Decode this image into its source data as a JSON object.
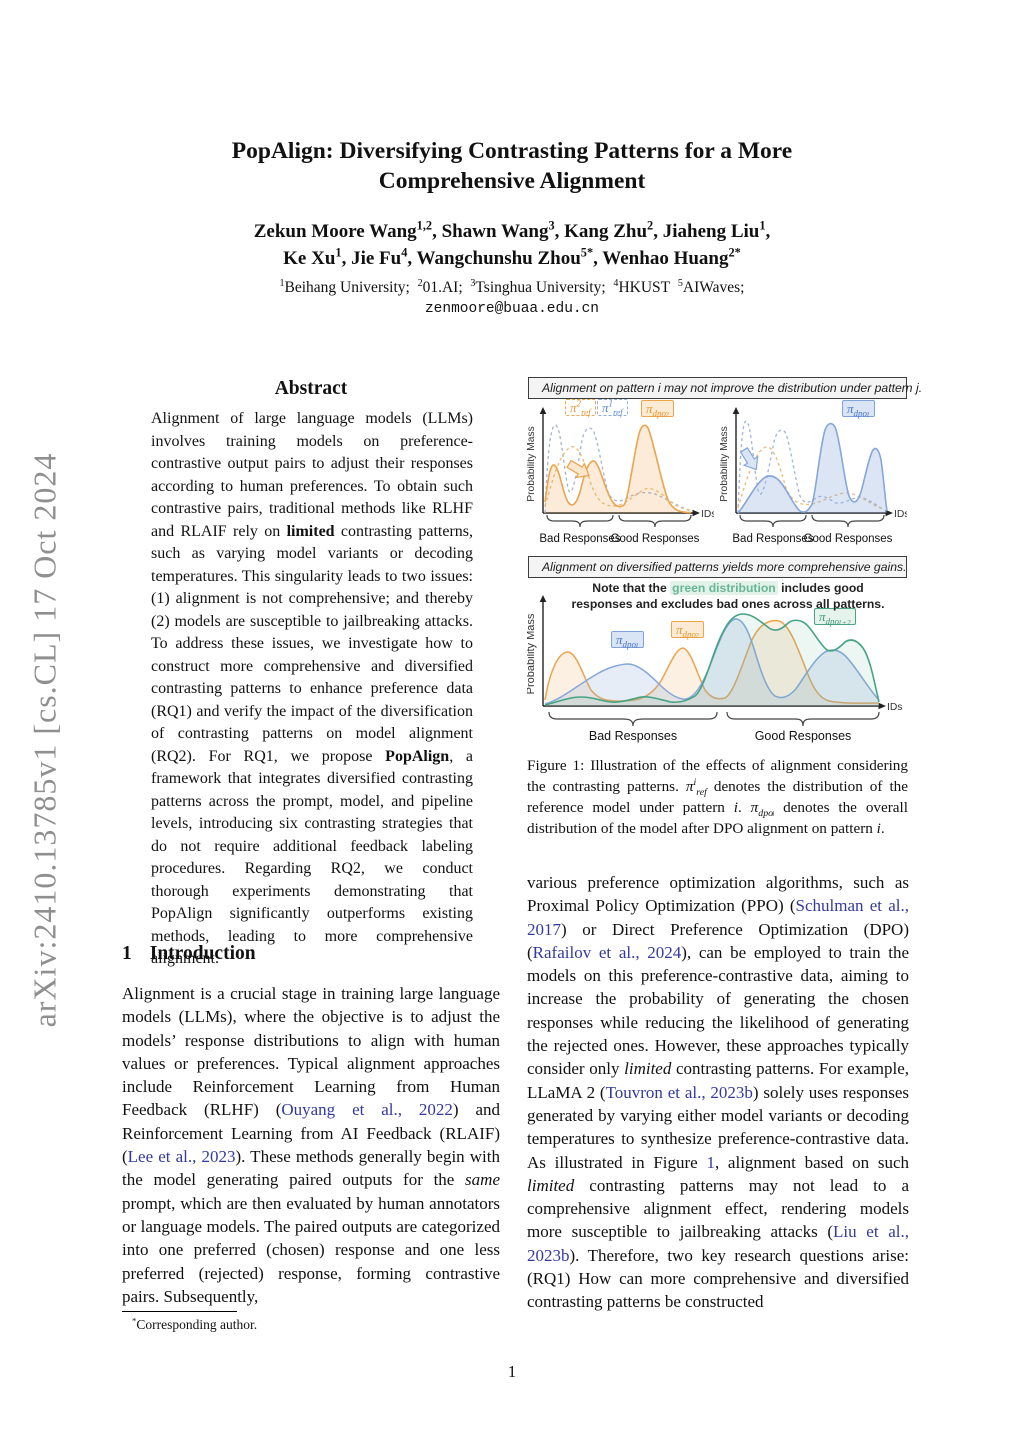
{
  "watermark": "arXiv:2410.13785v1  [cs.CL]  17 Oct 2024",
  "page_number": "1",
  "header": {
    "title_line1": "PopAlign: Diversifying Contrasting Patterns for a More",
    "title_line2": "Comprehensive Alignment",
    "authors_line1": [
      {
        "t": "Zekun Moore Wang"
      },
      {
        "t": "1,2",
        "sup": true
      },
      {
        "t": ", Shawn Wang"
      },
      {
        "t": "3",
        "sup": true
      },
      {
        "t": ", Kang Zhu"
      },
      {
        "t": "2",
        "sup": true
      },
      {
        "t": ", Jiaheng Liu"
      },
      {
        "t": "1",
        "sup": true
      },
      {
        "t": ","
      }
    ],
    "authors_line2": [
      {
        "t": "Ke Xu"
      },
      {
        "t": "1",
        "sup": true
      },
      {
        "t": ", Jie Fu"
      },
      {
        "t": "4",
        "sup": true
      },
      {
        "t": ", Wangchunshu Zhou"
      },
      {
        "t": "5*",
        "sup": true
      },
      {
        "t": ", Wenhao Huang"
      },
      {
        "t": "2*",
        "sup": true
      }
    ],
    "affiliations": [
      {
        "t": "1",
        "sup": true
      },
      {
        "t": "Beihang University; "
      },
      {
        "t": "2",
        "sup": true
      },
      {
        "t": "01.AI; "
      },
      {
        "t": "3",
        "sup": true
      },
      {
        "t": "Tsinghua University; "
      },
      {
        "t": "4",
        "sup": true
      },
      {
        "t": "HKUST "
      },
      {
        "t": "5",
        "sup": true
      },
      {
        "t": "AIWaves;"
      }
    ],
    "email": "zenmoore@buaa.edu.cn"
  },
  "abstract": {
    "heading": "Abstract",
    "body": [
      {
        "t": "Alignment of large language models (LLMs) involves training models on preference-contrastive output pairs to adjust their responses according to human preferences. To obtain such contrastive pairs, traditional methods like RLHF and RLAIF rely on "
      },
      {
        "t": "limited",
        "b": true
      },
      {
        "t": " contrasting patterns, such as varying model variants or decoding temperatures. This singularity leads to two issues: (1) alignment is not comprehensive; and thereby (2) models are susceptible to jailbreaking attacks. To address these issues, we investigate how to construct more comprehensive and diversified contrasting patterns to enhance preference data (RQ1) and verify the impact of the diversification of contrasting patterns on model alignment (RQ2). For RQ1, we propose "
      },
      {
        "t": "PopAlign",
        "b": true
      },
      {
        "t": ", a framework that integrates diversified contrasting patterns across the prompt, model, and pipeline levels, introducing six contrasting strategies that do not require additional feedback labeling procedures. Regarding RQ2, we conduct thorough experiments demonstrating that PopAlign significantly outperforms existing methods, leading to more comprehensive alignment."
      }
    ]
  },
  "introduction": {
    "heading_number": "1",
    "heading_text": "Introduction",
    "p1": [
      {
        "t": "Alignment is a crucial stage in training large language models (LLMs), where the objective is to adjust the models’ response distributions to align with human values or preferences. Typical alignment approaches include Reinforcement Learning from Human Feedback (RLHF) ("
      },
      {
        "t": "Ouyang et al., 2022",
        "link": true
      },
      {
        "t": ") and Reinforcement Learning from AI Feedback (RLAIF) ("
      },
      {
        "t": "Lee et al., 2023",
        "link": true
      },
      {
        "t": "). These methods generally begin with the model generating paired outputs for the "
      },
      {
        "t": "same",
        "i": true
      },
      {
        "t": " prompt, which are then evaluated by human annotators or language models. The paired outputs are categorized into one preferred (chosen) response and one less preferred (rejected) response, forming contrastive pairs. Subsequently,"
      }
    ]
  },
  "footnote": [
    {
      "t": "*",
      "sup": true
    },
    {
      "t": "Corresponding author."
    }
  ],
  "right_column": {
    "p1": [
      {
        "t": "various preference optimization algorithms, such as Proximal Policy Optimization (PPO) ("
      },
      {
        "t": "Schulman et al., 2017",
        "link": true
      },
      {
        "t": ") or Direct Preference Optimization (DPO) ("
      },
      {
        "t": "Rafailov et al., 2024",
        "link": true
      },
      {
        "t": "), can be employed to train the models on this preference-contrastive data, aiming to increase the probability of generating the chosen responses while reducing the likelihood of generating the rejected ones. However, these approaches typically consider only "
      },
      {
        "t": "limited",
        "i": true
      },
      {
        "t": " contrasting patterns. For example, LLaMA 2 ("
      },
      {
        "t": "Touvron et al., 2023b",
        "link": true
      },
      {
        "t": ") solely uses responses generated by varying either model variants or decoding temperatures to synthesize preference-contrastive data. As illustrated in Figure "
      },
      {
        "t": "1",
        "link": true
      },
      {
        "t": ", alignment based on such "
      },
      {
        "t": "limited",
        "i": true
      },
      {
        "t": " contrasting patterns may not lead to a comprehensive alignment effect, rendering models more susceptible to jailbreaking attacks ("
      },
      {
        "t": "Liu et al., 2023b",
        "link": true
      },
      {
        "t": "). Therefore, two key research questions arise: (RQ1) How can more comprehensive and diversified contrasting patterns be constructed"
      }
    ]
  },
  "figure1": {
    "banner1": [
      {
        "t": "Alignment on pattern "
      },
      {
        "t": "i",
        "i": true
      },
      {
        "t": " may not improve the distribution under pattern "
      },
      {
        "t": "j",
        "i": true
      },
      {
        "t": "."
      }
    ],
    "banner2": [
      {
        "t": "Alignment on diversified patterns yields more comprehensive gains."
      }
    ],
    "note": [
      {
        "t": "Note that the "
      },
      {
        "t": "green distribution",
        "hl": true
      },
      {
        "t": " includes good responses and excludes bad ones across all patterns."
      }
    ],
    "axis": {
      "y": "Probability Mass",
      "x": "IDs"
    },
    "braces": {
      "bad": "Bad Responses",
      "good": "Good Responses"
    },
    "labels": {
      "ref2": {
        "base": "π",
        "sup": "2",
        "sub": "ref"
      },
      "ref1": {
        "base": "π",
        "sup": "1",
        "sub": "ref"
      },
      "dpoA": {
        "base": "π",
        "sub": "dpo",
        "sub2": "2"
      },
      "dpoB": {
        "base": "π",
        "sub": "dpo",
        "sub2": "1"
      },
      "dpoC1": {
        "base": "π",
        "sub": "dpo",
        "sub2": "1"
      },
      "dpoC2": {
        "base": "π",
        "sub": "dpo",
        "sub2": "2"
      },
      "dpoC12": {
        "base": "π",
        "sub": "dpo",
        "sub2": "1+2"
      }
    },
    "colors": {
      "orange": "#ECA44D",
      "blue": "#85A7DA",
      "blue_dashed": "#9FB4D6",
      "green": "#46A385",
      "link_blue": "#3339A0"
    },
    "caption": [
      {
        "t": "Figure 1: Illustration of the effects of alignment considering the contrasting patterns. "
      },
      {
        "t": "π",
        "i": true
      },
      {
        "t": "i",
        "sup": true,
        "i": true
      },
      {
        "t": "ref",
        "sub": true,
        "i": true
      },
      {
        "t": " denotes the distribution of the reference model under pattern "
      },
      {
        "t": "i",
        "i": true
      },
      {
        "t": ". "
      },
      {
        "t": "π",
        "i": true
      },
      {
        "t": "dpo",
        "sub": true,
        "i": true
      },
      {
        "t": "i",
        "sub2": true,
        "i": true
      },
      {
        "t": " denotes the overall distribution of the model after DPO alignment on pattern "
      },
      {
        "t": "i",
        "i": true
      },
      {
        "t": "."
      }
    ]
  }
}
